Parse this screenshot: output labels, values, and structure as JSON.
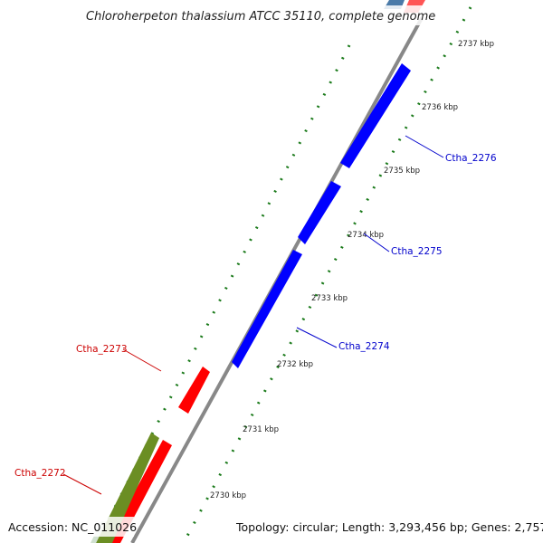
{
  "title": "Chloroherpeton thalassium ATCC 35110, complete genome",
  "footer": {
    "accession": "Accession: NC_011026",
    "summary": "Topology: circular; Length: 3,293,456 bp; Genes: 2,757"
  },
  "colors": {
    "forward_gene": "#ff0000",
    "reverse_gene": "#0000ff",
    "rna_gene": "#6b8e23",
    "backbone": "#888888",
    "tick_marks": "#1a7a1a",
    "forward_label": "#cc0000",
    "reverse_label": "#0000cc"
  },
  "scale": {
    "unit": "kbp",
    "tick_labels": [
      "2730 kbp",
      "2731 kbp",
      "2732 kbp",
      "2733 kbp",
      "2734 kbp",
      "2735 kbp",
      "2736 kbp",
      "2737 kbp"
    ]
  },
  "gene_labels": [
    {
      "name": "Ctha_2276",
      "strand": "reverse"
    },
    {
      "name": "Ctha_2275",
      "strand": "reverse"
    },
    {
      "name": "Ctha_2274",
      "strand": "reverse"
    },
    {
      "name": "Ctha_2273",
      "strand": "forward"
    },
    {
      "name": "Ctha_2272",
      "strand": "forward"
    }
  ]
}
